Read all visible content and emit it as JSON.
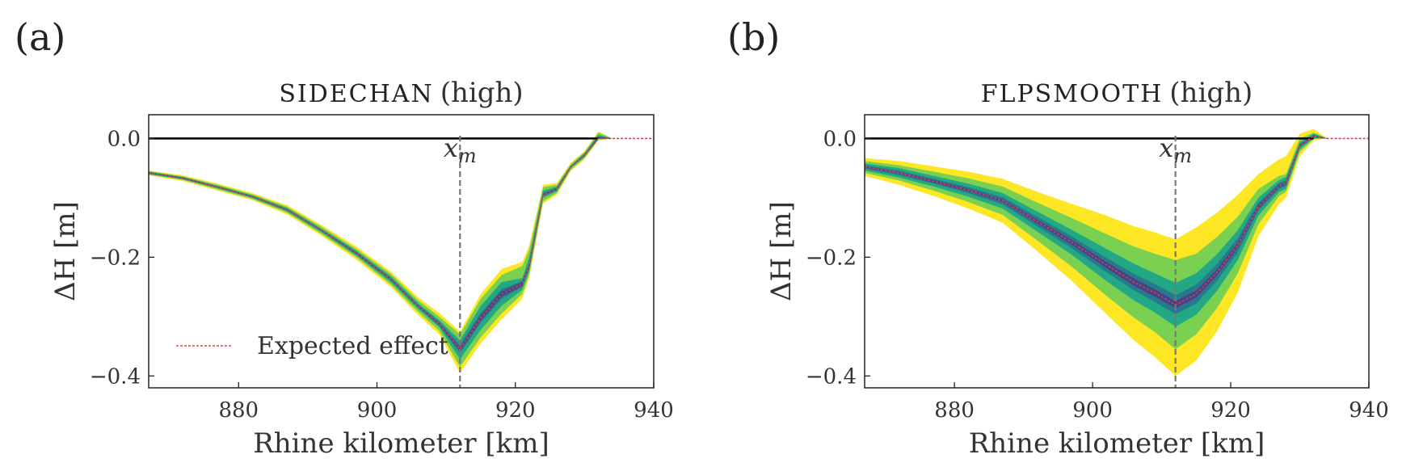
{
  "chart_data": [
    {
      "type": "area",
      "panel_label": "(a)",
      "title_prefix": "SIDECHAN",
      "title_suffix": "(high)",
      "xlabel": "Rhine kilometer [km]",
      "ylabel": "ΔH [m]",
      "xlim": [
        867,
        940
      ],
      "ylim": [
        -0.42,
        0.04
      ],
      "xticks": [
        880,
        900,
        920,
        940
      ],
      "yticks": [
        0.0,
        -0.2,
        -0.4
      ],
      "ytick_labels": [
        "0.0",
        "−0.2",
        "−0.4"
      ],
      "marker_x": 912,
      "marker_label": "x_m",
      "legend": {
        "label": "Expected effect",
        "position": "lower-left"
      },
      "x": [
        867,
        872,
        877,
        882,
        887,
        892,
        897,
        902,
        906,
        909,
        912,
        915,
        918,
        921,
        922,
        924,
        926,
        928,
        930,
        932,
        934,
        937,
        940
      ],
      "mean": [
        -0.058,
        -0.067,
        -0.082,
        -0.098,
        -0.12,
        -0.155,
        -0.193,
        -0.237,
        -0.283,
        -0.312,
        -0.355,
        -0.302,
        -0.262,
        -0.245,
        -0.215,
        -0.095,
        -0.085,
        -0.048,
        -0.028,
        0.0,
        0.0,
        0.0,
        0.0
      ],
      "bands": [
        {
          "level": "outer",
          "color": "#fde725",
          "lower": [
            -0.062,
            -0.072,
            -0.088,
            -0.104,
            -0.128,
            -0.164,
            -0.204,
            -0.25,
            -0.298,
            -0.33,
            -0.395,
            -0.345,
            -0.305,
            -0.27,
            -0.235,
            -0.11,
            -0.095,
            -0.055,
            -0.035,
            -0.003,
            0.0,
            0.0,
            0.0
          ],
          "upper": [
            -0.054,
            -0.062,
            -0.076,
            -0.092,
            -0.112,
            -0.146,
            -0.182,
            -0.224,
            -0.268,
            -0.294,
            -0.325,
            -0.262,
            -0.22,
            -0.208,
            -0.18,
            -0.078,
            -0.075,
            -0.041,
            -0.021,
            0.012,
            0.0,
            0.0,
            0.0
          ]
        },
        {
          "level": "band-2",
          "color": "#7ad151",
          "lower": [
            -0.061,
            -0.07,
            -0.086,
            -0.102,
            -0.125,
            -0.161,
            -0.2,
            -0.246,
            -0.293,
            -0.324,
            -0.385,
            -0.335,
            -0.295,
            -0.262,
            -0.23,
            -0.106,
            -0.092,
            -0.053,
            -0.033,
            -0.002,
            0.0,
            0.0,
            0.0
          ],
          "upper": [
            -0.055,
            -0.064,
            -0.078,
            -0.094,
            -0.115,
            -0.149,
            -0.186,
            -0.228,
            -0.273,
            -0.3,
            -0.33,
            -0.27,
            -0.23,
            -0.215,
            -0.188,
            -0.082,
            -0.078,
            -0.043,
            -0.023,
            0.01,
            0.0,
            0.0,
            0.0
          ]
        },
        {
          "level": "band-3",
          "color": "#22a884",
          "lower": [
            -0.06,
            -0.069,
            -0.084,
            -0.1,
            -0.123,
            -0.158,
            -0.197,
            -0.242,
            -0.288,
            -0.318,
            -0.372,
            -0.322,
            -0.282,
            -0.255,
            -0.224,
            -0.1,
            -0.089,
            -0.05,
            -0.031,
            -0.001,
            0.0,
            0.0,
            0.0
          ],
          "upper": [
            -0.056,
            -0.065,
            -0.08,
            -0.096,
            -0.117,
            -0.152,
            -0.189,
            -0.232,
            -0.278,
            -0.306,
            -0.34,
            -0.282,
            -0.242,
            -0.235,
            -0.2,
            -0.088,
            -0.081,
            -0.046,
            -0.025,
            0.006,
            0.0,
            0.0,
            0.0
          ]
        },
        {
          "level": "band-4",
          "color": "#2a788e",
          "lower": [
            -0.059,
            -0.068,
            -0.083,
            -0.099,
            -0.121,
            -0.156,
            -0.195,
            -0.239,
            -0.285,
            -0.315,
            -0.362,
            -0.31,
            -0.27,
            -0.25,
            -0.219,
            -0.097,
            -0.087,
            -0.049,
            -0.029,
            0.0,
            0.0,
            0.0,
            0.0
          ],
          "upper": [
            -0.057,
            -0.066,
            -0.081,
            -0.097,
            -0.119,
            -0.154,
            -0.191,
            -0.235,
            -0.281,
            -0.309,
            -0.348,
            -0.294,
            -0.254,
            -0.24,
            -0.21,
            -0.092,
            -0.083,
            -0.047,
            -0.027,
            0.004,
            0.0,
            0.0,
            0.0
          ]
        },
        {
          "level": "inner",
          "color": "#414487",
          "lower": [
            -0.0585,
            -0.0675,
            -0.0825,
            -0.0985,
            -0.1205,
            -0.1555,
            -0.194,
            -0.238,
            -0.284,
            -0.3135,
            -0.358,
            -0.306,
            -0.266,
            -0.248,
            -0.217,
            -0.096,
            -0.086,
            -0.0485,
            -0.0285,
            0.0,
            0.0,
            0.0,
            0.0
          ],
          "upper": [
            -0.0575,
            -0.0665,
            -0.0815,
            -0.0975,
            -0.1195,
            -0.1545,
            -0.192,
            -0.236,
            -0.282,
            -0.3105,
            -0.352,
            -0.298,
            -0.258,
            -0.242,
            -0.213,
            -0.094,
            -0.084,
            -0.0475,
            -0.0275,
            0.002,
            0.0,
            0.0,
            0.0
          ]
        }
      ]
    },
    {
      "type": "area",
      "panel_label": "(b)",
      "title_prefix": "FLPSMOOTH",
      "title_suffix": "(high)",
      "xlabel": "Rhine kilometer [km]",
      "ylabel": "ΔH [m]",
      "xlim": [
        867,
        940
      ],
      "ylim": [
        -0.42,
        0.04
      ],
      "xticks": [
        880,
        900,
        920,
        940
      ],
      "yticks": [
        0.0,
        -0.2,
        -0.4
      ],
      "ytick_labels": [
        "0.0",
        "−0.2",
        "−0.4"
      ],
      "marker_x": 912,
      "marker_label": "x_m",
      "x": [
        867,
        872,
        877,
        882,
        887,
        892,
        897,
        902,
        906,
        909,
        912,
        915,
        918,
        921,
        924,
        927,
        928,
        930,
        932,
        934,
        937,
        940
      ],
      "mean": [
        -0.048,
        -0.058,
        -0.072,
        -0.087,
        -0.105,
        -0.14,
        -0.175,
        -0.213,
        -0.242,
        -0.26,
        -0.28,
        -0.262,
        -0.226,
        -0.18,
        -0.115,
        -0.08,
        -0.075,
        -0.012,
        0.004,
        0.0,
        0.0,
        0.0
      ],
      "bands": [
        {
          "level": "outer",
          "color": "#fde725",
          "lower": [
            -0.063,
            -0.078,
            -0.097,
            -0.118,
            -0.142,
            -0.19,
            -0.24,
            -0.296,
            -0.34,
            -0.368,
            -0.4,
            -0.374,
            -0.325,
            -0.26,
            -0.165,
            -0.11,
            -0.1,
            -0.03,
            -0.003,
            0.0,
            0.0,
            0.0
          ],
          "upper": [
            -0.033,
            -0.038,
            -0.047,
            -0.056,
            -0.068,
            -0.09,
            -0.11,
            -0.13,
            -0.148,
            -0.158,
            -0.17,
            -0.15,
            -0.125,
            -0.095,
            -0.06,
            -0.035,
            -0.03,
            0.008,
            0.016,
            0.0,
            0.0,
            0.0
          ]
        },
        {
          "level": "band-2",
          "color": "#7ad151",
          "lower": [
            -0.058,
            -0.071,
            -0.088,
            -0.107,
            -0.129,
            -0.172,
            -0.216,
            -0.265,
            -0.302,
            -0.326,
            -0.355,
            -0.33,
            -0.286,
            -0.228,
            -0.145,
            -0.097,
            -0.09,
            -0.023,
            -0.001,
            0.0,
            0.0,
            0.0
          ],
          "upper": [
            -0.038,
            -0.045,
            -0.056,
            -0.067,
            -0.081,
            -0.108,
            -0.134,
            -0.161,
            -0.182,
            -0.194,
            -0.205,
            -0.194,
            -0.166,
            -0.132,
            -0.085,
            -0.063,
            -0.06,
            0.0,
            0.01,
            0.0,
            0.0,
            0.0
          ]
        },
        {
          "level": "band-3",
          "color": "#22a884",
          "lower": [
            -0.054,
            -0.066,
            -0.081,
            -0.098,
            -0.118,
            -0.157,
            -0.196,
            -0.24,
            -0.273,
            -0.293,
            -0.317,
            -0.297,
            -0.257,
            -0.205,
            -0.13,
            -0.09,
            -0.085,
            -0.018,
            0.0,
            0.0,
            0.0,
            0.0
          ],
          "upper": [
            -0.042,
            -0.05,
            -0.063,
            -0.076,
            -0.092,
            -0.123,
            -0.154,
            -0.186,
            -0.211,
            -0.227,
            -0.243,
            -0.227,
            -0.195,
            -0.155,
            -0.1,
            -0.07,
            -0.065,
            -0.006,
            0.008,
            0.0,
            0.0,
            0.0
          ]
        },
        {
          "level": "band-4",
          "color": "#2a788e",
          "lower": [
            -0.051,
            -0.062,
            -0.076,
            -0.092,
            -0.111,
            -0.148,
            -0.185,
            -0.225,
            -0.256,
            -0.275,
            -0.296,
            -0.278,
            -0.24,
            -0.192,
            -0.122,
            -0.085,
            -0.08,
            -0.015,
            0.002,
            0.0,
            0.0,
            0.0
          ],
          "upper": [
            -0.045,
            -0.054,
            -0.068,
            -0.082,
            -0.099,
            -0.132,
            -0.165,
            -0.201,
            -0.228,
            -0.245,
            -0.264,
            -0.246,
            -0.212,
            -0.168,
            -0.108,
            -0.075,
            -0.07,
            -0.009,
            0.006,
            0.0,
            0.0,
            0.0
          ]
        },
        {
          "level": "inner",
          "color": "#414487",
          "lower": [
            -0.049,
            -0.059,
            -0.074,
            -0.089,
            -0.107,
            -0.143,
            -0.179,
            -0.218,
            -0.248,
            -0.266,
            -0.286,
            -0.268,
            -0.231,
            -0.184,
            -0.118,
            -0.082,
            -0.077,
            -0.013,
            0.003,
            0.0,
            0.0,
            0.0
          ],
          "upper": [
            -0.047,
            -0.057,
            -0.07,
            -0.085,
            -0.103,
            -0.137,
            -0.171,
            -0.208,
            -0.236,
            -0.254,
            -0.274,
            -0.256,
            -0.221,
            -0.176,
            -0.112,
            -0.078,
            -0.073,
            -0.011,
            0.005,
            0.0,
            0.0,
            0.0
          ]
        }
      ]
    }
  ],
  "colors": {
    "zero_line": "#000000",
    "mean_line": "#e63946",
    "marker_line": "#777777",
    "axis": "#222222"
  }
}
